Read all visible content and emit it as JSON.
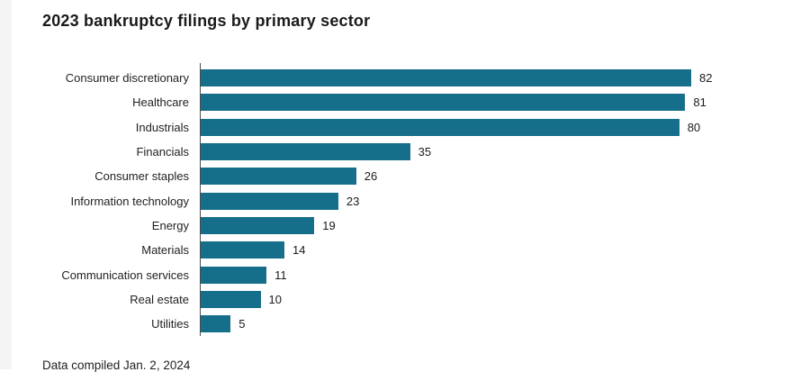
{
  "chart_data": {
    "type": "bar",
    "orientation": "horizontal",
    "title": "2023 bankruptcy filings by primary sector",
    "categories": [
      "Consumer discretionary",
      "Healthcare",
      "Industrials",
      "Financials",
      "Consumer staples",
      "Information technology",
      "Energy",
      "Materials",
      "Communication services",
      "Real estate",
      "Utilities"
    ],
    "values": [
      82,
      81,
      80,
      35,
      26,
      23,
      19,
      14,
      11,
      10,
      5
    ],
    "xlabel": "",
    "ylabel": "",
    "xlim": [
      0,
      90
    ],
    "grid": false,
    "legend": "none",
    "value_labels": true,
    "bar_color": "#156e8a",
    "axis_color": "#4d4d4d",
    "title_color": "#1a1a1a",
    "label_color": "#1f1f1f"
  },
  "footer": {
    "note": "Data compiled Jan. 2, 2024"
  }
}
